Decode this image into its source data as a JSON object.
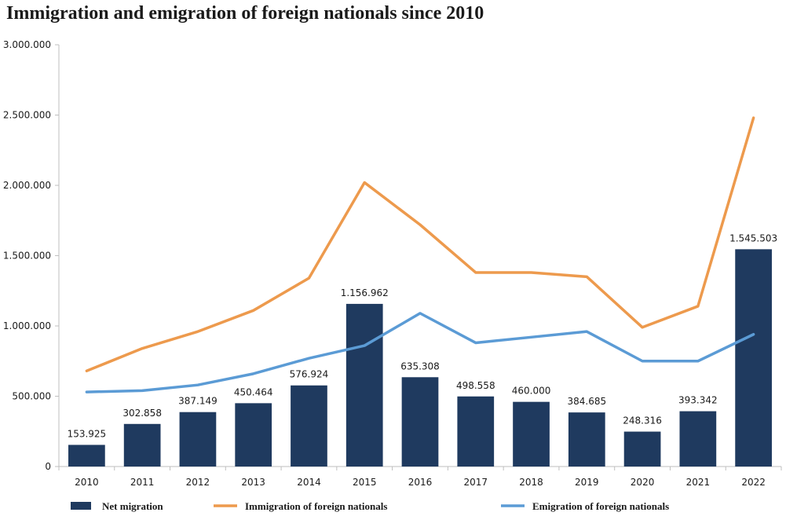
{
  "chart_data": {
    "type": "bar",
    "title": "Immigration and emigration of foreign nationals since 2010",
    "xlabel": "",
    "ylabel": "",
    "categories": [
      "2010",
      "2011",
      "2012",
      "2013",
      "2014",
      "2015",
      "2016",
      "2017",
      "2018",
      "2019",
      "2020",
      "2021",
      "2022"
    ],
    "ylim": [
      0,
      3000000
    ],
    "yticks": [
      0,
      500000,
      1000000,
      1500000,
      2000000,
      2500000,
      3000000
    ],
    "ytick_labels": [
      "0",
      "500.000",
      "1.000.000",
      "1.500.000",
      "2.000.000",
      "2.500.000",
      "3.000.000"
    ],
    "grid": false,
    "legend_position": "bottom",
    "series": [
      {
        "name": "Net migration",
        "kind": "bar",
        "color": "#1f3a5f",
        "values": [
          153925,
          302858,
          387149,
          450464,
          576924,
          1156962,
          635308,
          498558,
          460000,
          384685,
          248316,
          393342,
          1545503
        ],
        "labels": [
          "153.925",
          "302.858",
          "387.149",
          "450.464",
          "576.924",
          "1.156.962",
          "635.308",
          "498.558",
          "460.000",
          "384.685",
          "248.316",
          "393.342",
          "1.545.503"
        ]
      },
      {
        "name": "Immigration of foreign nationals",
        "kind": "line",
        "color": "#ed9a4d",
        "values": [
          680000,
          840000,
          960000,
          1110000,
          1340000,
          2020000,
          1720000,
          1380000,
          1380000,
          1350000,
          990000,
          1140000,
          2480000
        ]
      },
      {
        "name": "Emigration of foreign nationals",
        "kind": "line",
        "color": "#5b9bd5",
        "values": [
          530000,
          540000,
          580000,
          660000,
          770000,
          860000,
          1090000,
          880000,
          920000,
          960000,
          750000,
          750000,
          940000
        ]
      }
    ]
  }
}
